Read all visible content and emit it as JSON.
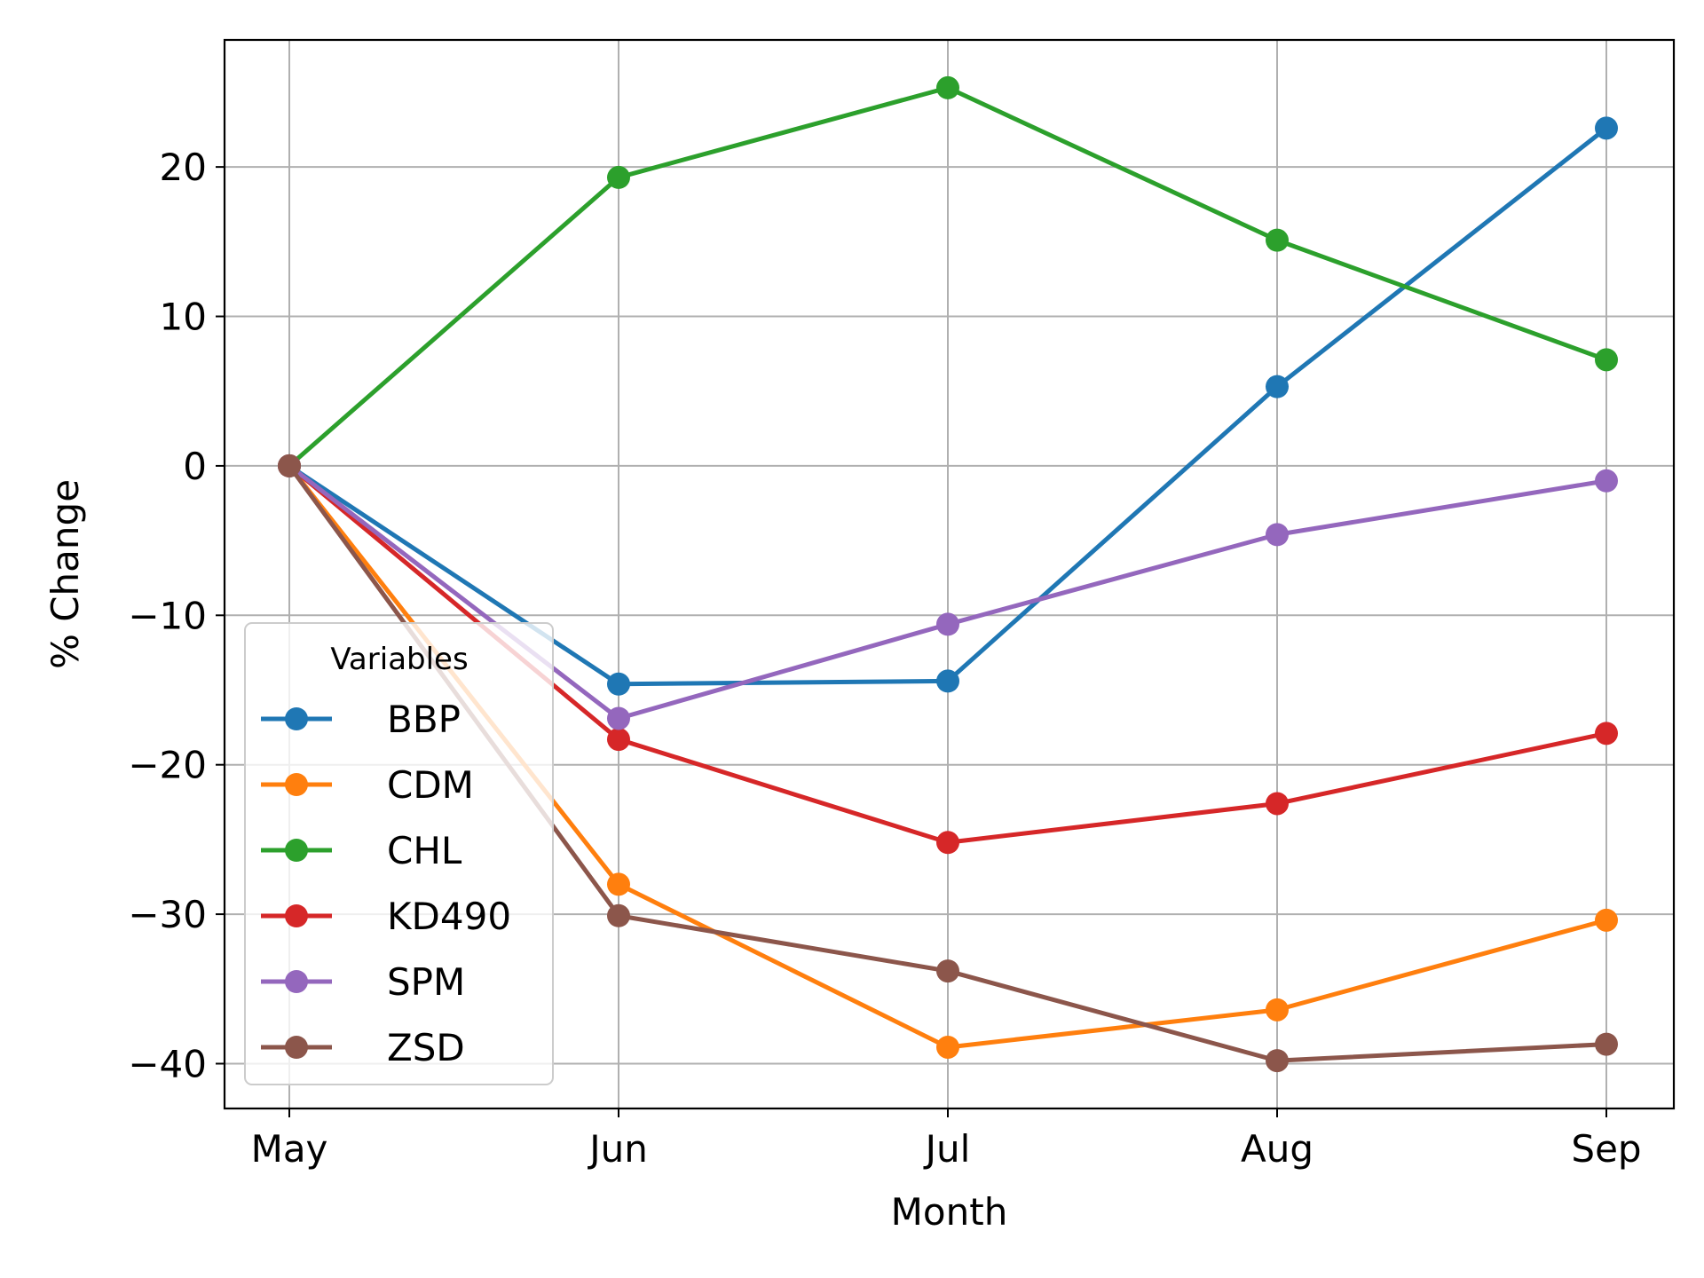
{
  "chart_data": {
    "type": "line",
    "title": "",
    "xlabel": "Month",
    "ylabel": "% Change",
    "categories": [
      "May",
      "Jun",
      "Jul",
      "Aug",
      "Sep"
    ],
    "ylim": [
      -43,
      28.5
    ],
    "yticks": [
      -40,
      -30,
      -20,
      -10,
      0,
      10,
      20
    ],
    "ytick_labels": [
      "−40",
      "−30",
      "−20",
      "−10",
      "0",
      "10",
      "20"
    ],
    "grid": true,
    "legend": {
      "title": "Variables",
      "placement": "lower-left"
    },
    "series": [
      {
        "name": "BBP",
        "color": "#1f77b4",
        "values": [
          0,
          -14.6,
          -14.4,
          5.3,
          22.6
        ]
      },
      {
        "name": "CDM",
        "color": "#ff7f0e",
        "values": [
          0,
          -28.0,
          -38.9,
          -36.4,
          -30.4
        ]
      },
      {
        "name": "CHL",
        "color": "#2ca02c",
        "values": [
          0,
          19.3,
          25.3,
          15.1,
          7.1
        ]
      },
      {
        "name": "KD490",
        "color": "#d62728",
        "values": [
          0,
          -18.3,
          -25.2,
          -22.6,
          -17.9
        ]
      },
      {
        "name": "SPM",
        "color": "#9467bd",
        "values": [
          0,
          -16.9,
          -10.6,
          -4.6,
          -1.0
        ]
      },
      {
        "name": "ZSD",
        "color": "#8c564b",
        "values": [
          0,
          -30.1,
          -33.8,
          -39.8,
          -38.7
        ]
      }
    ]
  }
}
